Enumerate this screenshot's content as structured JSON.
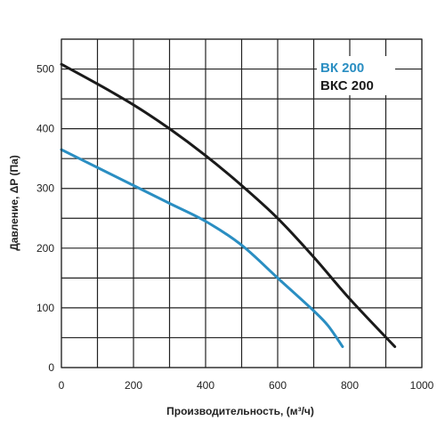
{
  "chart_data": {
    "type": "line",
    "xlabel": "Производительность, (м³/ч)",
    "ylabel": "Давление, ΔP (Па)",
    "xlim": [
      0,
      1000
    ],
    "ylim": [
      0,
      550
    ],
    "xticks": [
      0,
      200,
      400,
      600,
      800,
      1000
    ],
    "yticks": [
      0,
      100,
      200,
      300,
      400,
      500
    ],
    "grid": true,
    "legend_position": "top-right",
    "series": [
      {
        "name": "ВК 200",
        "color": "#2a8ec2",
        "points": [
          [
            0,
            365
          ],
          [
            100,
            335
          ],
          [
            200,
            305
          ],
          [
            300,
            275
          ],
          [
            400,
            245
          ],
          [
            500,
            205
          ],
          [
            600,
            150
          ],
          [
            700,
            95
          ],
          [
            740,
            70
          ],
          [
            780,
            35
          ]
        ]
      },
      {
        "name": "ВКС 200",
        "color": "#1a1a1a",
        "points": [
          [
            0,
            508
          ],
          [
            100,
            475
          ],
          [
            200,
            440
          ],
          [
            300,
            400
          ],
          [
            400,
            355
          ],
          [
            500,
            305
          ],
          [
            600,
            250
          ],
          [
            700,
            185
          ],
          [
            800,
            115
          ],
          [
            925,
            35
          ]
        ]
      }
    ]
  }
}
